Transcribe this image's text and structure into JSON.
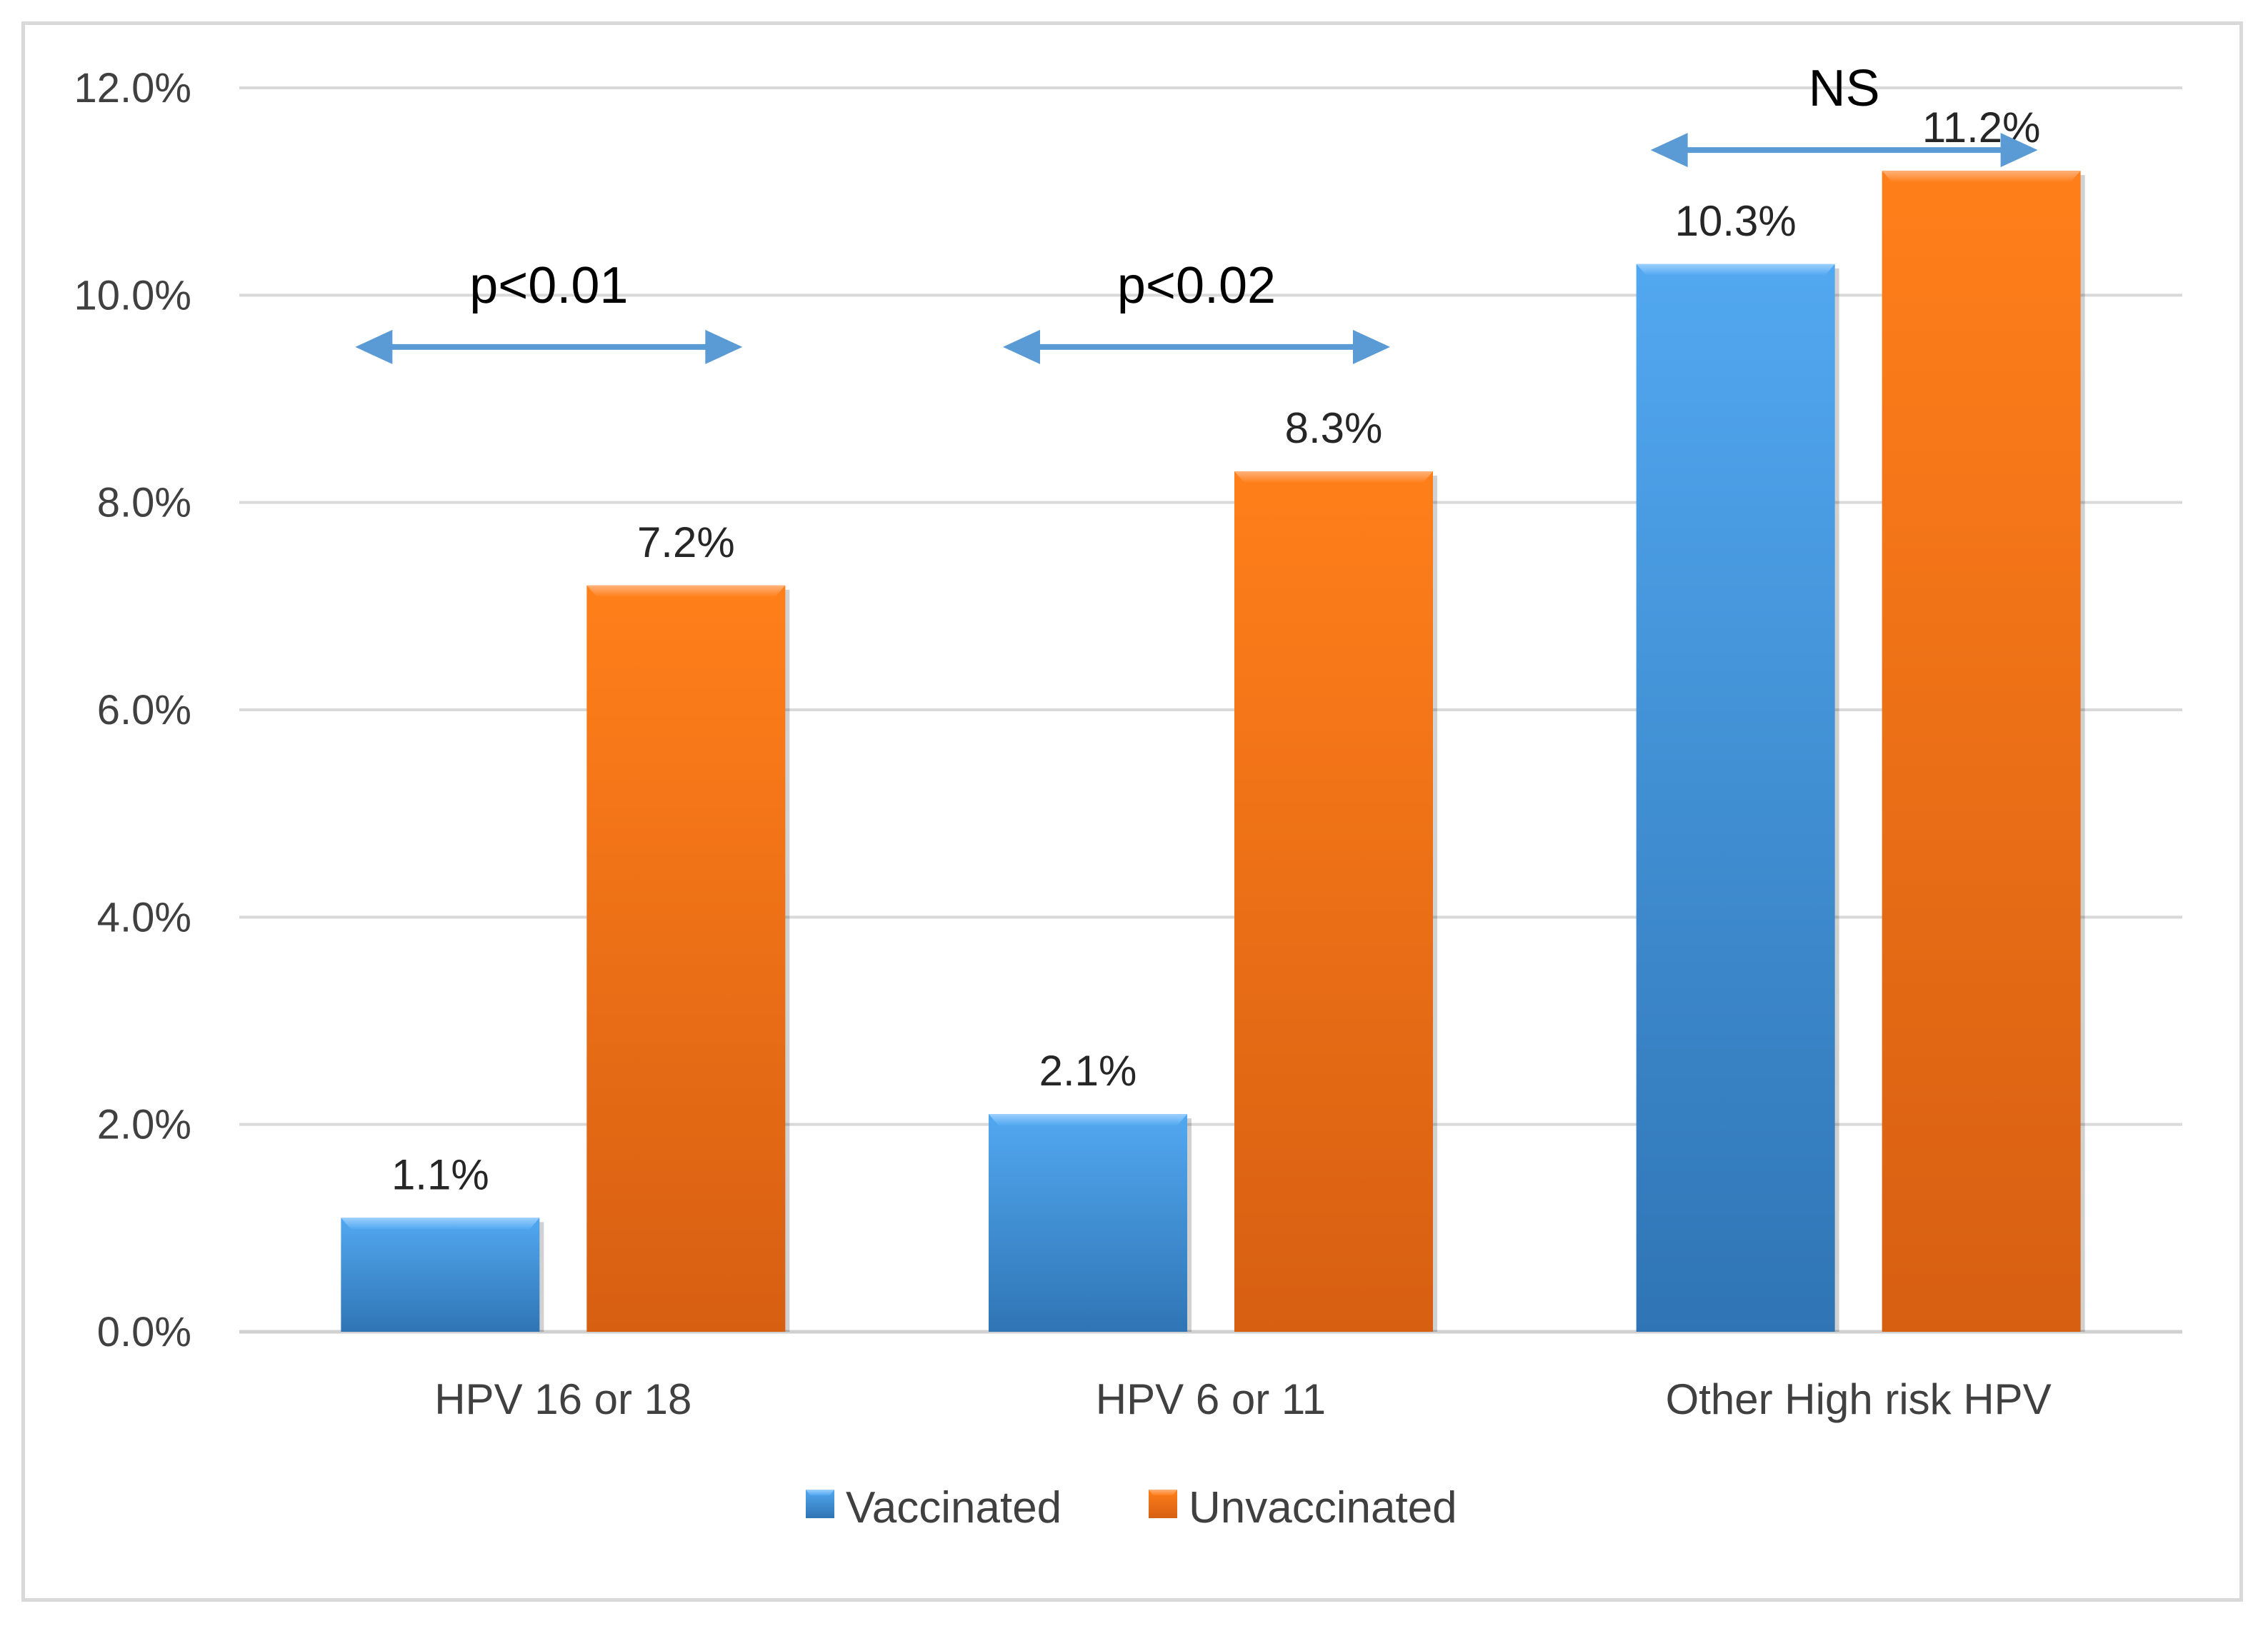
{
  "chart_data": {
    "type": "bar",
    "title": "",
    "xlabel": "",
    "ylabel": "",
    "ylim": [
      0,
      12
    ],
    "yticks": [
      "0.0%",
      "2.0%",
      "4.0%",
      "6.0%",
      "8.0%",
      "10.0%",
      "12.0%"
    ],
    "grid": true,
    "categories": [
      "HPV 16 or 18",
      "HPV 6 or 11",
      "Other High risk HPV"
    ],
    "series": [
      {
        "name": "Vaccinated",
        "values": [
          1.1,
          2.1,
          10.3
        ],
        "labels": [
          "1.1%",
          "2.1%",
          "10.3%"
        ],
        "color": "#3d8fd8"
      },
      {
        "name": "Unvaccinated",
        "values": [
          7.2,
          8.3,
          11.2
        ],
        "labels": [
          "7.2%",
          "8.3%",
          "11.2%"
        ],
        "color": "#f07318"
      }
    ],
    "annotations": [
      {
        "category_index": 0,
        "text": "p<0.01",
        "arrow_level": 9.5
      },
      {
        "category_index": 1,
        "text": "p<0.02",
        "arrow_level": 9.5
      },
      {
        "category_index": 2,
        "text": "NS",
        "arrow_level": 11.4
      }
    ],
    "legend_position": "bottom",
    "arrow_color": "#5b9bd5"
  }
}
